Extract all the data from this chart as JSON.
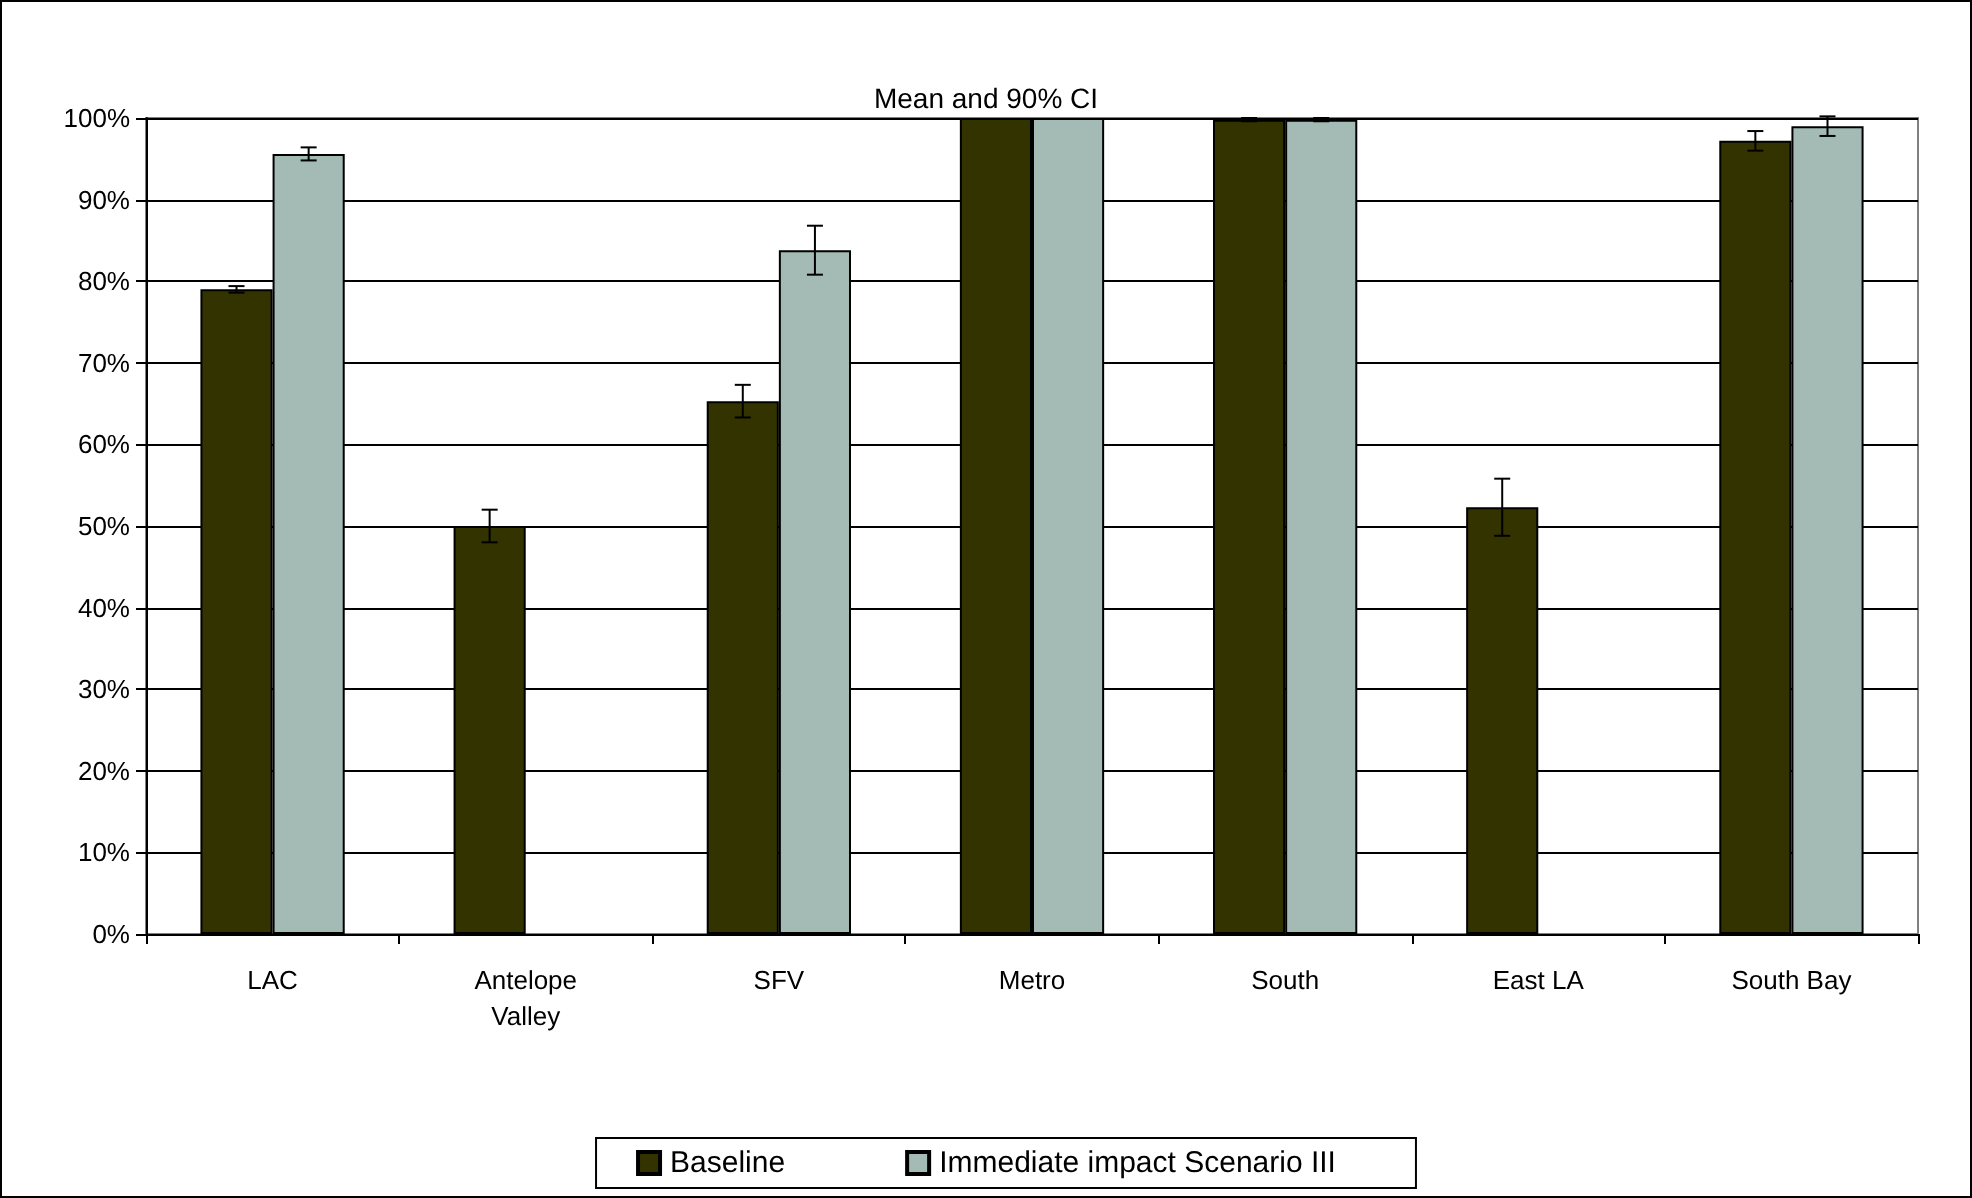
{
  "chart_data": {
    "type": "bar",
    "title": "Mean and 90% CI",
    "categories": [
      "LAC",
      "Antelope\nValley",
      "SFV",
      "Metro",
      "South",
      "East LA",
      "South Bay"
    ],
    "series": [
      {
        "name": "Baseline",
        "color": "#333300",
        "values": [
          79,
          50,
          65.3,
          100,
          99.8,
          52.3,
          97.2
        ],
        "errors": [
          0.4,
          2,
          2,
          null,
          0.2,
          3.5,
          1.2
        ]
      },
      {
        "name": "Immediate impact Scenario III",
        "color": "#a3bbb4",
        "values": [
          95.6,
          0,
          83.8,
          100,
          99.8,
          0,
          99
        ],
        "errors": [
          0.8,
          null,
          3,
          null,
          0.2,
          null,
          1.2
        ]
      }
    ],
    "ylim": [
      0,
      100
    ],
    "yticks": [
      {
        "value": 0,
        "label": "0%"
      },
      {
        "value": 10,
        "label": "10%"
      },
      {
        "value": 20,
        "label": "20%"
      },
      {
        "value": 30,
        "label": "30%"
      },
      {
        "value": 40,
        "label": "40%"
      },
      {
        "value": 50,
        "label": "50%"
      },
      {
        "value": 60,
        "label": "60%"
      },
      {
        "value": 70,
        "label": "70%"
      },
      {
        "value": 80,
        "label": "80%"
      },
      {
        "value": 90,
        "label": "90%"
      },
      {
        "value": 100,
        "label": "100%"
      }
    ],
    "grid": "y",
    "legend": "bottom"
  }
}
